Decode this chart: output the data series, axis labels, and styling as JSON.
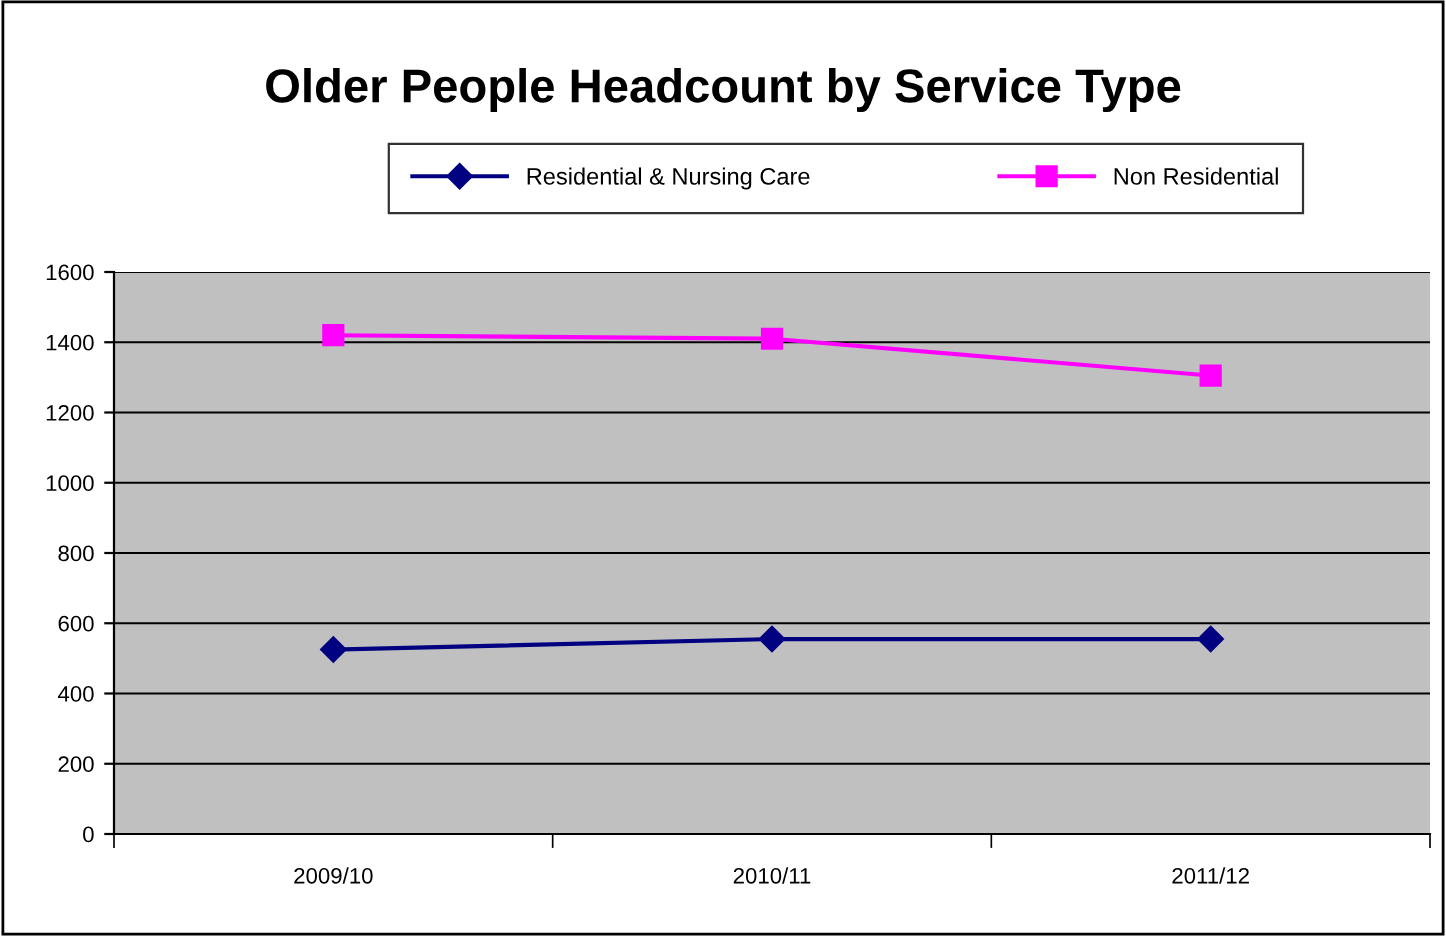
{
  "chart_data": {
    "type": "line",
    "title": "Older People Headcount by Service Type",
    "categories": [
      "2009/10",
      "2010/11",
      "2011/12"
    ],
    "series": [
      {
        "name": "Residential & Nursing Care",
        "color": "#000080",
        "values": [
          525,
          555,
          555
        ],
        "marker": "diamond"
      },
      {
        "name": "Non Residential",
        "color": "#ff00ff",
        "values": [
          1420,
          1410,
          1305
        ],
        "marker": "square"
      }
    ],
    "ylim": [
      0,
      1600
    ],
    "yticks": [
      0,
      200,
      400,
      600,
      800,
      1000,
      1200,
      1400,
      1600
    ],
    "grid": "y",
    "legend": "top",
    "line_style": "solid"
  }
}
